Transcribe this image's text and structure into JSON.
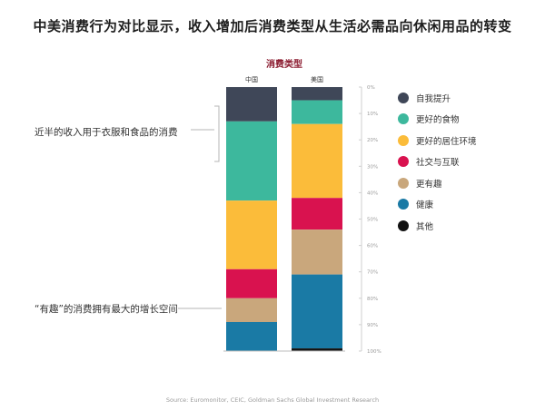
{
  "title": "中美消费行为对比显示，收入增加后消费类型从生活必需品向休闲用品的转变",
  "source": "Source: Euromonitor, CEIC, Goldman Sachs Global Investment Research",
  "annotations": {
    "top": "近半的收入用于衣服和食品的消费",
    "bottom": "“有趣”的消费拥有最大的增长空间"
  },
  "chart_data": {
    "type": "bar",
    "stacked": true,
    "percent": true,
    "title": "消费类型",
    "categories": [
      "中国",
      "美国"
    ],
    "ylim": [
      0,
      100
    ],
    "yticks": [
      "0%",
      "10%",
      "20%",
      "30%",
      "40%",
      "50%",
      "60%",
      "70%",
      "80%",
      "90%",
      "100%"
    ],
    "series": [
      {
        "name": "自我提升",
        "color": "#3F4758",
        "values": [
          13,
          5
        ]
      },
      {
        "name": "更好的食物",
        "color": "#3DB89D",
        "values": [
          30,
          9
        ]
      },
      {
        "name": "更好的居住环境",
        "color": "#FBBC3A",
        "values": [
          26,
          28
        ]
      },
      {
        "name": "社交与互联",
        "color": "#D9124F",
        "values": [
          11,
          12
        ]
      },
      {
        "name": "更有趣",
        "color": "#C9A77C",
        "values": [
          9,
          17
        ]
      },
      {
        "name": "健康",
        "color": "#1A7AA5",
        "values": [
          11,
          28
        ]
      },
      {
        "name": "其他",
        "color": "#111111",
        "values": [
          0,
          1
        ]
      }
    ],
    "legend_position": "right"
  }
}
